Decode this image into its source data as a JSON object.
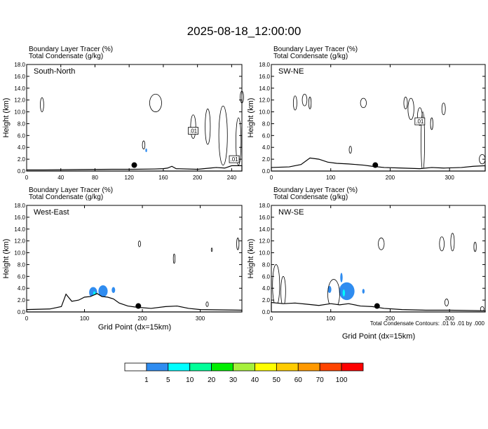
{
  "title": "2025-08-18_12:00:00",
  "panel_header_line1": "Boundary Layer Tracer   (%)",
  "panel_header_line2": "Total Condensate   (g/kg)",
  "y_axis_label": "Height (km)",
  "x_axis_label": "Grid Point (dx=15km)",
  "contour_note": "Total Condensate Contours: .01 to .01 by .000",
  "colorbar": {
    "colors": [
      "#ffffff",
      "#2f8cf0",
      "#00ffff",
      "#00ff99",
      "#00ee00",
      "#a6f03c",
      "#ffff00",
      "#ffcc00",
      "#ff9900",
      "#ff4400",
      "#ff0000"
    ],
    "labels": [
      "1",
      "5",
      "10",
      "20",
      "30",
      "40",
      "50",
      "60",
      "70",
      "100"
    ]
  },
  "chart_data": [
    {
      "type": "contour",
      "name": "South-North",
      "panel_label": "South-North",
      "xlim": [
        0,
        252
      ],
      "xticks": [
        0,
        40,
        80,
        120,
        160,
        200,
        240
      ],
      "ylim": [
        0,
        18
      ],
      "yticks": [
        "0.0",
        "2.0",
        "4.0",
        "6.0",
        "8.0",
        "10.0",
        "12.0",
        "14.0",
        "16.0",
        "18.0"
      ],
      "terrain": [
        [
          0,
          0.2
        ],
        [
          20,
          0.2
        ],
        [
          60,
          0.25
        ],
        [
          100,
          0.3
        ],
        [
          125,
          0.3
        ],
        [
          150,
          0.35
        ],
        [
          160,
          0.4
        ],
        [
          165,
          0.5
        ],
        [
          170,
          0.8
        ],
        [
          175,
          0.4
        ],
        [
          200,
          0.3
        ],
        [
          215,
          0.5
        ],
        [
          222,
          0.6
        ],
        [
          232,
          0.5
        ],
        [
          240,
          0.9
        ],
        [
          252,
          0.9
        ]
      ],
      "marker": {
        "x": 126,
        "y": 1.0
      },
      "contour_labels": [
        {
          "x": 195,
          "y": 6.8,
          "text": ".01"
        },
        {
          "x": 243,
          "y": 2.0,
          "text": ".01"
        }
      ],
      "tracer_patches": [
        {
          "x": 140,
          "y": 3.5,
          "rx": 1,
          "ry": 0.3,
          "level": 1
        }
      ]
    },
    {
      "type": "contour",
      "name": "SW-NE",
      "panel_label": "SW-NE",
      "xlim": [
        0,
        360
      ],
      "xticks": [
        0,
        100,
        200,
        300
      ],
      "ylim": [
        0,
        18
      ],
      "yticks": [
        "0.0",
        "2.0",
        "4.0",
        "6.0",
        "8.0",
        "10.0",
        "12.0",
        "14.0",
        "16.0",
        "18.0"
      ],
      "terrain": [
        [
          0,
          0.6
        ],
        [
          30,
          0.7
        ],
        [
          50,
          1.1
        ],
        [
          65,
          2.2
        ],
        [
          80,
          2.0
        ],
        [
          95,
          1.5
        ],
        [
          110,
          1.3
        ],
        [
          130,
          1.2
        ],
        [
          155,
          1.0
        ],
        [
          170,
          0.8
        ],
        [
          190,
          0.6
        ],
        [
          220,
          0.5
        ],
        [
          250,
          0.4
        ],
        [
          270,
          0.6
        ],
        [
          290,
          0.5
        ],
        [
          320,
          0.6
        ],
        [
          340,
          0.8
        ],
        [
          360,
          0.9
        ]
      ],
      "marker": {
        "x": 175,
        "y": 1.0
      },
      "contour_labels": [
        {
          "x": 250,
          "y": 8.4,
          "text": ".01"
        }
      ],
      "tracer_patches": []
    },
    {
      "type": "contour",
      "name": "West-East",
      "panel_label": "West-East",
      "xlim": [
        0,
        372
      ],
      "xticks": [
        0,
        100,
        200,
        300
      ],
      "ylim": [
        0,
        18
      ],
      "yticks": [
        "0.0",
        "2.0",
        "4.0",
        "6.0",
        "8.0",
        "10.0",
        "12.0",
        "14.0",
        "16.0",
        "18.0"
      ],
      "terrain": [
        [
          0,
          0.4
        ],
        [
          40,
          0.5
        ],
        [
          60,
          0.9
        ],
        [
          68,
          3.0
        ],
        [
          78,
          1.8
        ],
        [
          90,
          2.0
        ],
        [
          100,
          2.5
        ],
        [
          110,
          2.6
        ],
        [
          122,
          3.1
        ],
        [
          130,
          2.6
        ],
        [
          140,
          2.5
        ],
        [
          150,
          2.2
        ],
        [
          160,
          1.5
        ],
        [
          175,
          1.0
        ],
        [
          190,
          0.8
        ],
        [
          215,
          0.6
        ],
        [
          240,
          0.9
        ],
        [
          260,
          1.0
        ],
        [
          280,
          0.6
        ],
        [
          300,
          0.4
        ],
        [
          372,
          0.3
        ]
      ],
      "marker": {
        "x": 193,
        "y": 1.0
      },
      "contour_labels": [],
      "tracer_patches": [
        {
          "x": 115,
          "y": 3.3,
          "rx": 7,
          "ry": 0.9,
          "level": 1
        },
        {
          "x": 132,
          "y": 3.5,
          "rx": 8,
          "ry": 1.0,
          "level": 1
        },
        {
          "x": 150,
          "y": 3.7,
          "rx": 3,
          "ry": 0.5,
          "level": 1
        },
        {
          "x": 117,
          "y": 3.0,
          "rx": 2,
          "ry": 0.5,
          "level": 5
        },
        {
          "x": 120,
          "y": 2.8,
          "rx": 1.5,
          "ry": 0.4,
          "level": 20
        }
      ]
    },
    {
      "type": "contour",
      "name": "NW-SE",
      "panel_label": "NW-SE",
      "xlim": [
        0,
        360
      ],
      "xticks": [
        0,
        100,
        200,
        300
      ],
      "ylim": [
        0,
        18
      ],
      "yticks": [
        "0.0",
        "2.0",
        "4.0",
        "6.0",
        "8.0",
        "10.0",
        "12.0",
        "14.0",
        "16.0",
        "18.0"
      ],
      "terrain": [
        [
          0,
          1.6
        ],
        [
          20,
          1.4
        ],
        [
          40,
          1.5
        ],
        [
          60,
          1.3
        ],
        [
          80,
          1.1
        ],
        [
          100,
          1.4
        ],
        [
          115,
          1.2
        ],
        [
          130,
          1.4
        ],
        [
          150,
          1.0
        ],
        [
          170,
          0.9
        ],
        [
          190,
          0.6
        ],
        [
          220,
          0.4
        ],
        [
          260,
          0.3
        ],
        [
          300,
          0.3
        ],
        [
          360,
          0.2
        ]
      ],
      "marker": {
        "x": 178,
        "y": 1.0
      },
      "contour_labels": [],
      "tracer_patches": [
        {
          "x": 118,
          "y": 5.8,
          "rx": 2,
          "ry": 0.8,
          "level": 1
        },
        {
          "x": 98,
          "y": 3.8,
          "rx": 3,
          "ry": 0.6,
          "level": 1
        },
        {
          "x": 127,
          "y": 3.5,
          "rx": 13,
          "ry": 1.5,
          "level": 1
        },
        {
          "x": 155,
          "y": 3.5,
          "rx": 2,
          "ry": 0.4,
          "level": 1
        },
        {
          "x": 122,
          "y": 3.2,
          "rx": 2,
          "ry": 0.6,
          "level": 5
        }
      ]
    }
  ]
}
